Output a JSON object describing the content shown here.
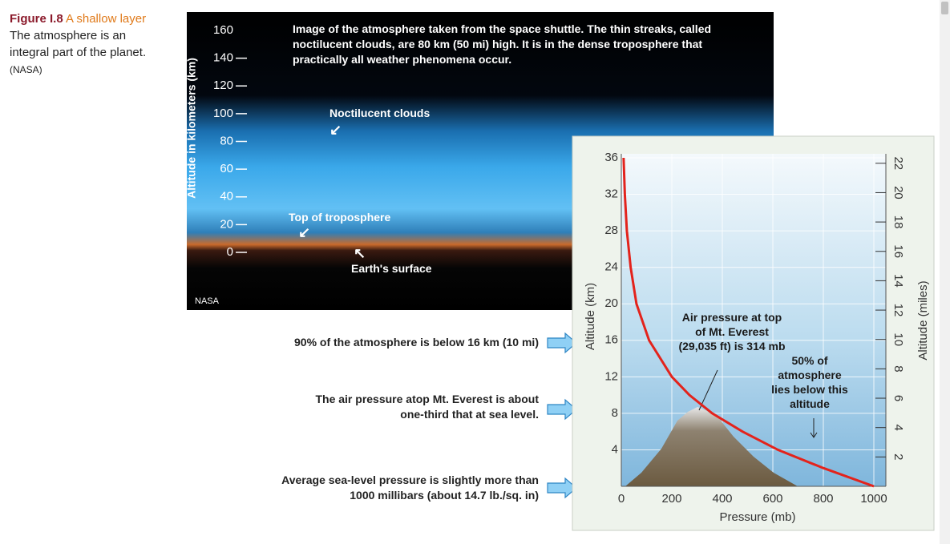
{
  "caption": {
    "figure_label": "Figure I.8",
    "title": "A shallow layer",
    "text": "The atmosphere is an integral part of the planet.",
    "credit": "(NASA)"
  },
  "photo": {
    "axis_label": "Altitude in kilometers (km)",
    "ylim": [
      0,
      160
    ],
    "yticks": [
      0,
      20,
      40,
      60,
      80,
      100,
      120,
      140,
      160
    ],
    "description": "Image of the atmosphere taken from the space shuttle. The thin streaks, called noctilucent clouds, are 80 km (50 mi) high. It is in the dense troposphere that practically all weather phenomena occur.",
    "labels": [
      "Noctilucent clouds",
      "Top of troposphere",
      "Earth's surface"
    ],
    "credit": "NASA"
  },
  "notes": [
    "90% of the atmosphere is below 16 km (10 mi)",
    "The air pressure atop Mt. Everest is about one-third that at sea level.",
    "Average sea-level pressure is slightly more than 1000 millibars (about 14.7 lb./sq. in)"
  ],
  "chart_data": {
    "type": "line",
    "x_label": "Pressure (mb)",
    "y_label": "Altitude (km)",
    "y2_label": "Altitude (miles)",
    "x": [
      1000,
      800,
      620,
      480,
      360,
      270,
      200,
      110,
      60,
      37,
      22,
      14,
      9
    ],
    "xlim": [
      0,
      1000
    ],
    "xticks": [
      0,
      200,
      400,
      600,
      800,
      1000
    ],
    "ylim": [
      0,
      36
    ],
    "yticks": [
      4,
      8,
      12,
      16,
      20,
      24,
      28,
      32,
      36
    ],
    "y2lim": [
      0,
      22.37
    ],
    "y2ticks": [
      2,
      4,
      6,
      8,
      10,
      12,
      14,
      16,
      18,
      20,
      22
    ],
    "grid": true,
    "series": [
      {
        "color": "#e3231c",
        "values": [
          0,
          2,
          4,
          6,
          8,
          10,
          12,
          16,
          20,
          24,
          28,
          32,
          36
        ]
      }
    ],
    "annotations": [
      "Air pressure at top of Mt. Everest (29,035 ft) is 314 mb",
      "50% of atmosphere lies below this altitude"
    ]
  }
}
